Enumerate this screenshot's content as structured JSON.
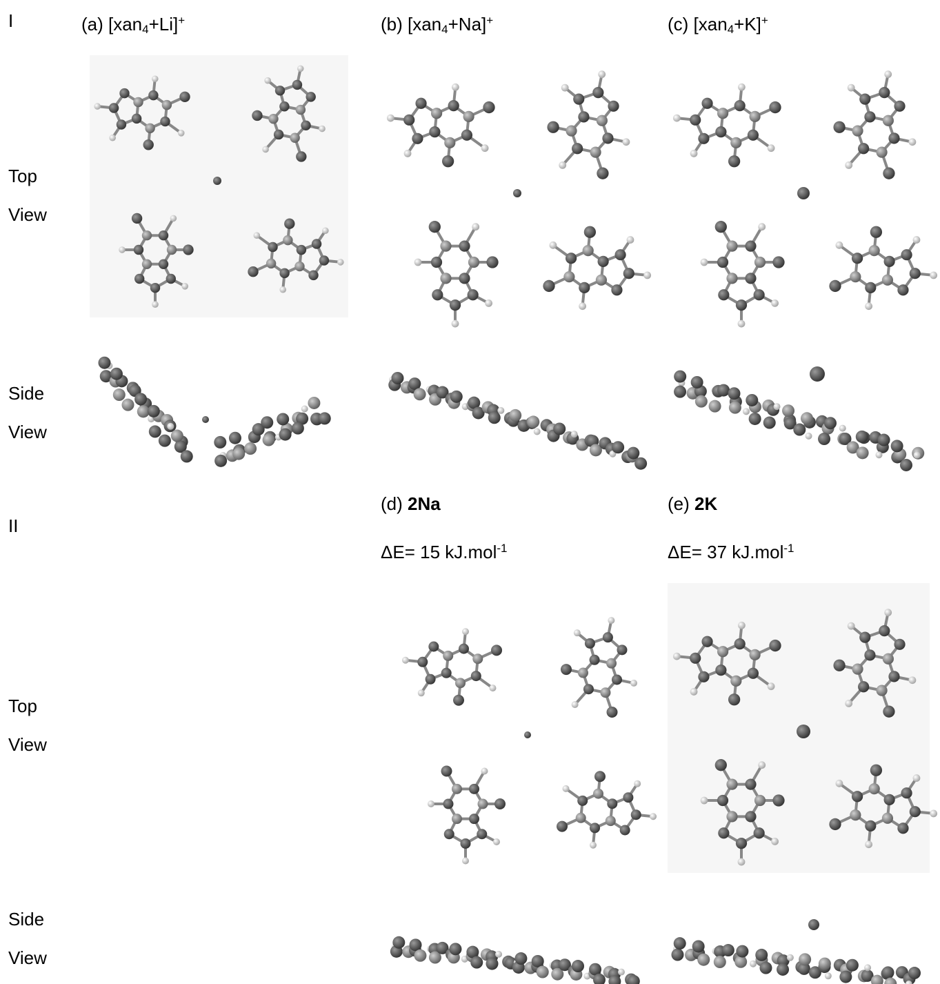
{
  "section_i": {
    "label": "I",
    "row_labels": {
      "top_1": "Top",
      "top_2": "View",
      "side_1": "Side",
      "side_2": "View"
    },
    "panels": [
      {
        "prefix": "(a) [xan",
        "sub": "4",
        "suffix": "+Li]",
        "sup": "+"
      },
      {
        "prefix": "(b) [xan",
        "sub": "4",
        "suffix": "+Na]",
        "sup": "+"
      },
      {
        "prefix": "(c) [xan",
        "sub": "4",
        "suffix": "+K]",
        "sup": "+"
      }
    ]
  },
  "section_ii": {
    "label": "II",
    "row_labels": {
      "top_1": "Top",
      "top_2": "View",
      "side_1": "Side",
      "side_2": "View"
    },
    "panels": [
      {
        "prefix": "(d) ",
        "bold": "2Na",
        "energy": "ΔE= 15 kJ.mol",
        "energy_sup": "-1"
      },
      {
        "prefix": "(e) ",
        "bold": "2K",
        "energy": "ΔE= 37 kJ.mol",
        "energy_sup": "-1"
      }
    ]
  }
}
